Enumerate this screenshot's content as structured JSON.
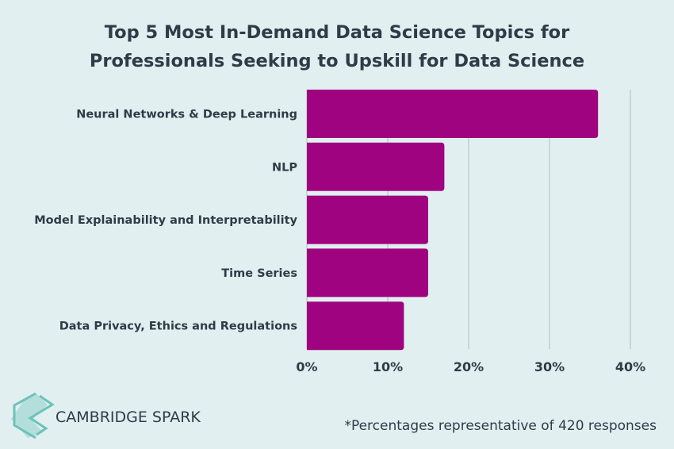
{
  "chart_data": {
    "type": "bar",
    "orientation": "horizontal",
    "title_lines": [
      "Top 5 Most In-Demand Data Science Topics for",
      "Professionals Seeking to Upskill for Data Science"
    ],
    "categories": [
      "Neural Networks & Deep Learning",
      "NLP",
      "Model Explainability and Interpretability",
      "Time Series",
      "Data Privacy, Ethics and Regulations"
    ],
    "values": [
      36,
      17,
      15,
      15,
      12
    ],
    "unit": "%",
    "xlim": [
      0,
      40
    ],
    "x_ticks": [
      0,
      10,
      20,
      30,
      40
    ],
    "x_tick_labels": [
      "0%",
      "10%",
      "20%",
      "30%",
      "40%"
    ],
    "grid": "vertical",
    "bar_color": "#a0037f",
    "background_color": "#e2eff0",
    "text_color": "#2f3b47"
  },
  "footer": {
    "brand": "CAMBRIDGE SPARK",
    "brand_color": "#6cc3b8",
    "note": "*Percentages representative of 420 responses"
  }
}
